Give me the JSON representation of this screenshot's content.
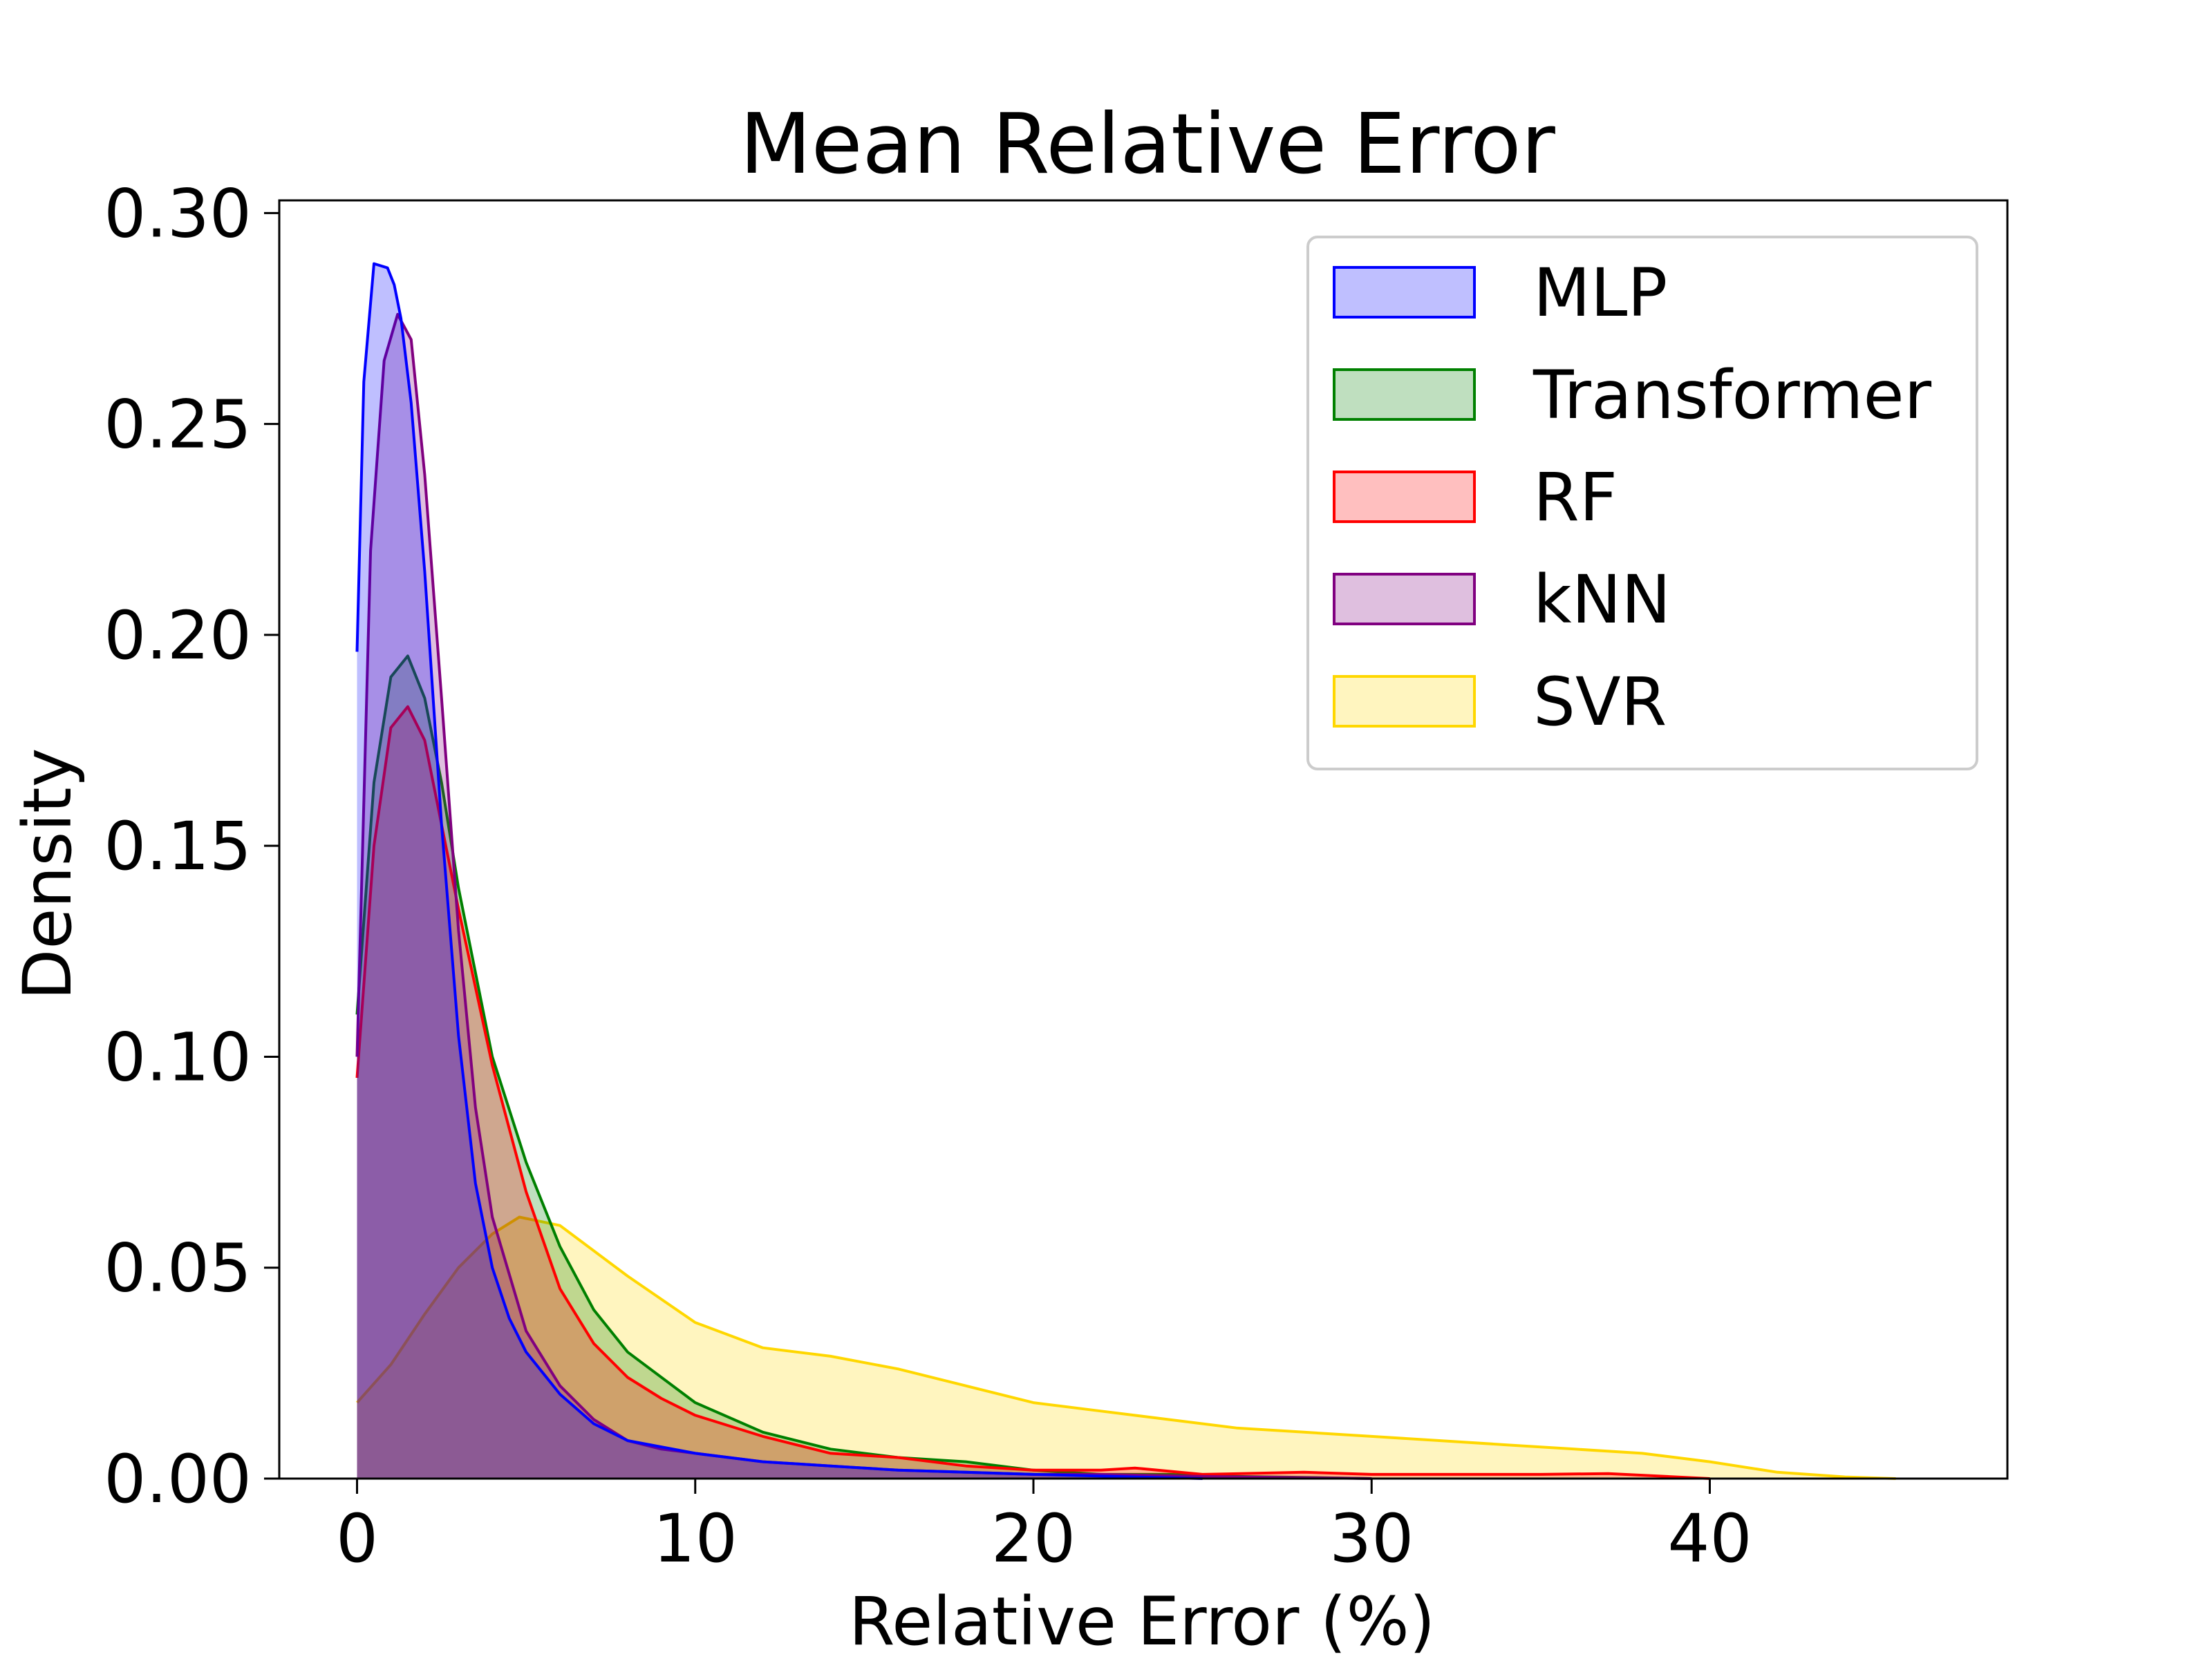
{
  "chart_data": {
    "type": "area",
    "title": "Mean Relative Error",
    "xlabel": "Relative Error (%)",
    "ylabel": "Density",
    "xlim": [
      -2.3,
      48.8
    ],
    "ylim": [
      0,
      0.303
    ],
    "xticks": [
      0,
      10,
      20,
      30,
      40
    ],
    "yticks": [
      0.0,
      0.05,
      0.1,
      0.15,
      0.2,
      0.25,
      0.3
    ],
    "ytick_labels": [
      "0.00",
      "0.05",
      "0.10",
      "0.15",
      "0.20",
      "0.25",
      "0.30"
    ],
    "grid": false,
    "legend_position": "top-right",
    "series": [
      {
        "name": "SVR",
        "color": "#ffd700",
        "fill_opacity": 0.25,
        "x": [
          0,
          1,
          2,
          3,
          4,
          4.8,
          6,
          8,
          10,
          12,
          14,
          16,
          18,
          20,
          22,
          24,
          26,
          28,
          30,
          32,
          34,
          36,
          38,
          40,
          42,
          44,
          45.5
        ],
        "y": [
          0.018,
          0.027,
          0.039,
          0.05,
          0.058,
          0.062,
          0.06,
          0.048,
          0.037,
          0.031,
          0.029,
          0.026,
          0.022,
          0.018,
          0.016,
          0.014,
          0.012,
          0.011,
          0.01,
          0.009,
          0.008,
          0.007,
          0.006,
          0.004,
          0.0015,
          0.0004,
          0.0
        ]
      },
      {
        "name": "Transformer",
        "color": "#008000",
        "fill_opacity": 0.25,
        "x": [
          0,
          0.5,
          1,
          1.5,
          2,
          2.5,
          3,
          4,
          5,
          6,
          7,
          8,
          10,
          12,
          14,
          16,
          18,
          20,
          22,
          24,
          26,
          28,
          30
        ],
        "y": [
          0.11,
          0.165,
          0.19,
          0.195,
          0.185,
          0.165,
          0.14,
          0.1,
          0.075,
          0.055,
          0.04,
          0.03,
          0.018,
          0.011,
          0.007,
          0.005,
          0.004,
          0.002,
          0.001,
          0.001,
          0.0005,
          0.0003,
          0.0
        ]
      },
      {
        "name": "RF",
        "color": "#ff0000",
        "fill_opacity": 0.25,
        "x": [
          0,
          0.5,
          1,
          1.5,
          2,
          2.5,
          3,
          4,
          5,
          6,
          7,
          8,
          9,
          10,
          12,
          14,
          16,
          18,
          20,
          22,
          23,
          25,
          28,
          30,
          35,
          37,
          40
        ],
        "y": [
          0.095,
          0.15,
          0.178,
          0.183,
          0.175,
          0.155,
          0.135,
          0.098,
          0.068,
          0.045,
          0.032,
          0.024,
          0.019,
          0.015,
          0.01,
          0.006,
          0.005,
          0.003,
          0.002,
          0.002,
          0.0025,
          0.001,
          0.0015,
          0.001,
          0.001,
          0.0012,
          0.0
        ]
      },
      {
        "name": "kNN",
        "color": "#800080",
        "fill_opacity": 0.25,
        "x": [
          0,
          0.4,
          0.8,
          1.2,
          1.6,
          2,
          2.5,
          3,
          3.5,
          4,
          5,
          6,
          7,
          8,
          9,
          10,
          12,
          14,
          16,
          18,
          20,
          22,
          25,
          30
        ],
        "y": [
          0.1,
          0.22,
          0.265,
          0.276,
          0.27,
          0.238,
          0.185,
          0.13,
          0.088,
          0.062,
          0.035,
          0.022,
          0.014,
          0.009,
          0.007,
          0.006,
          0.004,
          0.003,
          0.002,
          0.0015,
          0.001,
          0.001,
          0.0005,
          0.0
        ]
      },
      {
        "name": "MLP",
        "color": "#0000ff",
        "fill_opacity": 0.25,
        "x": [
          0,
          0.2,
          0.5,
          0.9,
          1.1,
          1.3,
          1.6,
          2,
          2.5,
          3,
          3.5,
          4,
          4.5,
          5,
          6,
          7,
          8,
          10,
          12,
          14,
          16,
          18,
          20,
          25
        ],
        "y": [
          0.196,
          0.26,
          0.288,
          0.287,
          0.283,
          0.275,
          0.255,
          0.215,
          0.155,
          0.105,
          0.07,
          0.05,
          0.038,
          0.03,
          0.02,
          0.013,
          0.009,
          0.006,
          0.004,
          0.003,
          0.002,
          0.0015,
          0.001,
          0.0
        ]
      }
    ],
    "legend_order": [
      "MLP",
      "Transformer",
      "RF",
      "kNN",
      "SVR"
    ]
  }
}
